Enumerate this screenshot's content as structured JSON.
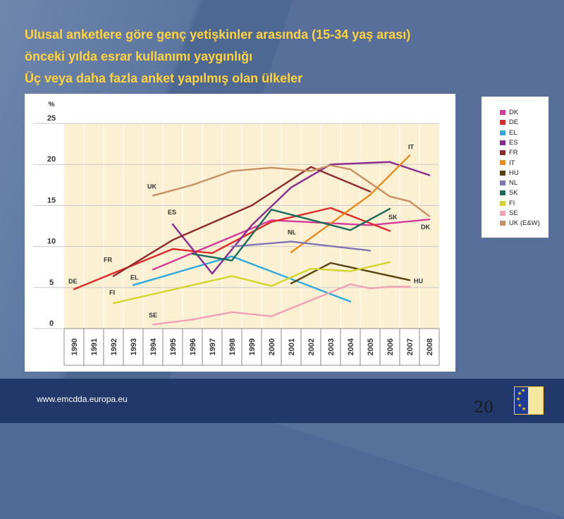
{
  "title": {
    "line1": "Ulusal anketlere göre genç yetişkinler arasında (15-34 yaş arası)",
    "line2": "önceki yılda esrar kullanımı yaygınlığı",
    "line3": "Üç veya daha fazla anket yapılmış olan ülkeler"
  },
  "footer": {
    "url": "www.emcdda.europa.eu",
    "page_number": "20"
  },
  "chart_data": {
    "type": "line",
    "y_unit_label": "%",
    "ylim": [
      0,
      25
    ],
    "y_ticks": [
      "25",
      "20",
      "15",
      "10",
      "5",
      "0"
    ],
    "categories": [
      "1990",
      "1991",
      "1992",
      "1993",
      "1994",
      "1995",
      "1996",
      "1997",
      "1998",
      "1999",
      "2000",
      "2001",
      "2002",
      "2003",
      "2004",
      "2005",
      "2006",
      "2007",
      "2008"
    ],
    "grid": true,
    "legend_position": "right-outside",
    "series": [
      {
        "name": "DK",
        "color": "#d63a9a",
        "label": "DK",
        "points": [
          [
            1994,
            7.2
          ],
          [
            2000,
            13.2
          ],
          [
            2005,
            12.6
          ],
          [
            2008,
            13.3
          ]
        ]
      },
      {
        "name": "DE",
        "color": "#e02a2a",
        "label": "DE",
        "points": [
          [
            1990,
            4.8
          ],
          [
            1995,
            9.7
          ],
          [
            1997,
            9.2
          ],
          [
            2000,
            13.0
          ],
          [
            2003,
            14.7
          ],
          [
            2006,
            11.9
          ]
        ]
      },
      {
        "name": "EL",
        "color": "#2fa8dc",
        "label": "EL",
        "points": [
          [
            1993,
            5.3
          ],
          [
            1998,
            8.8
          ],
          [
            2004,
            3.3
          ]
        ]
      },
      {
        "name": "ES",
        "color": "#8b2a8f",
        "label": "ES",
        "points": [
          [
            1995,
            12.7
          ],
          [
            1997,
            6.7
          ],
          [
            1999,
            12.6
          ],
          [
            2001,
            17.2
          ],
          [
            2003,
            20.0
          ],
          [
            2005,
            20.2
          ],
          [
            2006,
            20.3
          ],
          [
            2008,
            18.7
          ]
        ]
      },
      {
        "name": "FR",
        "color": "#8e2a2a",
        "label": "FR",
        "points": [
          [
            1992,
            6.4
          ],
          [
            1995,
            10.8
          ],
          [
            1999,
            15.0
          ],
          [
            2002,
            19.7
          ],
          [
            2005,
            16.7
          ]
        ]
      },
      {
        "name": "IT",
        "color": "#f08a1e",
        "label": "IT",
        "points": [
          [
            2001,
            9.3
          ],
          [
            2005,
            16.3
          ],
          [
            2007,
            21.1
          ]
        ]
      },
      {
        "name": "HU",
        "color": "#5a4010",
        "label": "HU",
        "points": [
          [
            2001,
            5.5
          ],
          [
            2003,
            8.0
          ],
          [
            2007,
            5.9
          ]
        ]
      },
      {
        "name": "NL",
        "color": "#8074b4",
        "label": "NL",
        "points": [
          [
            1998,
            10.0
          ],
          [
            2001,
            10.6
          ],
          [
            2005,
            9.5
          ]
        ]
      },
      {
        "name": "SK",
        "color": "#1a6b5a",
        "label": "SK",
        "points": [
          [
            1996,
            9.1
          ],
          [
            1998,
            8.3
          ],
          [
            2000,
            14.5
          ],
          [
            2004,
            12.0
          ],
          [
            2006,
            14.6
          ]
        ]
      },
      {
        "name": "FI",
        "color": "#d4d42a",
        "label": "FI",
        "points": [
          [
            1992,
            3.1
          ],
          [
            1998,
            6.4
          ],
          [
            2000,
            5.2
          ],
          [
            2002,
            7.3
          ],
          [
            2004,
            7.0
          ],
          [
            2006,
            8.1
          ]
        ]
      },
      {
        "name": "SE",
        "color": "#f2a0b4",
        "label": "SE",
        "points": [
          [
            1994,
            0.5
          ],
          [
            1996,
            1.1
          ],
          [
            1998,
            2.0
          ],
          [
            2000,
            1.5
          ],
          [
            2004,
            5.4
          ],
          [
            2005,
            4.9
          ],
          [
            2006,
            5.1
          ],
          [
            2007,
            5.1
          ]
        ]
      },
      {
        "name": "UK (E&W)",
        "color": "#c89064",
        "label": "UK",
        "points": [
          [
            1994,
            16.2
          ],
          [
            1996,
            17.5
          ],
          [
            1998,
            19.2
          ],
          [
            2000,
            19.6
          ],
          [
            2002,
            19.2
          ],
          [
            2003,
            19.9
          ],
          [
            2004,
            19.4
          ],
          [
            2006,
            16.1
          ],
          [
            2007,
            15.5
          ],
          [
            2008,
            13.7
          ]
        ]
      }
    ]
  }
}
